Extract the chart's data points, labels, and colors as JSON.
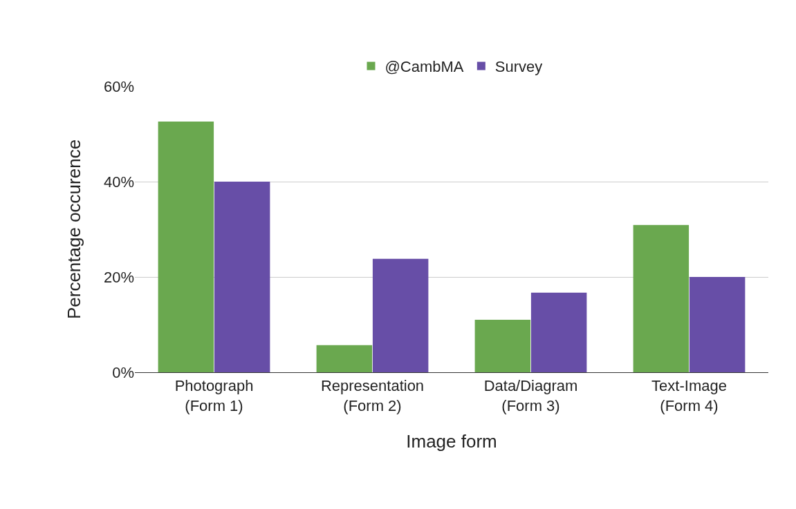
{
  "chart_data": {
    "type": "bar",
    "xlabel": "Image form",
    "ylabel": "Percentage occurence",
    "categories": [
      "Photograph\n(Form 1)",
      "Representation\n(Form 2)",
      "Data/Diagram\n(Form 3)",
      "Text-Image\n(Form 4)"
    ],
    "series": [
      {
        "name": "@CambMA",
        "color": "#6aa84f",
        "values": [
          52.6,
          5.7,
          11.0,
          30.9
        ]
      },
      {
        "name": "Survey",
        "color": "#674ea7",
        "values": [
          40.0,
          23.8,
          16.7,
          20.0
        ]
      }
    ],
    "ylim": [
      0,
      60
    ],
    "yticks": [
      {
        "value": 0,
        "label": "0%"
      },
      {
        "value": 20,
        "label": "20%"
      },
      {
        "value": 40,
        "label": "40%"
      },
      {
        "value": 60,
        "label": "60%"
      }
    ],
    "grid": "y",
    "legend": "top"
  }
}
